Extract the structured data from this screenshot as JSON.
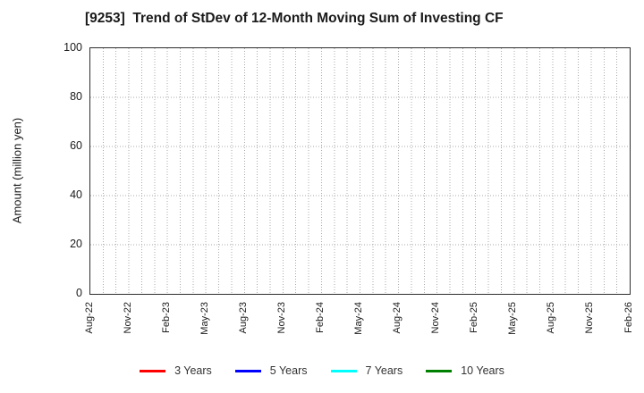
{
  "chart_data": {
    "type": "line",
    "title": "[9253]  Trend of StDev of 12-Month Moving Sum of Investing CF",
    "xlabel": "",
    "ylabel": "Amount (million yen)",
    "ylim": [
      0,
      100
    ],
    "yticks": [
      0,
      20,
      40,
      60,
      80,
      100
    ],
    "x_tick_labels": [
      "Aug-22",
      "Nov-22",
      "Feb-23",
      "May-23",
      "Aug-23",
      "Nov-23",
      "Feb-24",
      "May-24",
      "Aug-24",
      "Nov-24",
      "Feb-25",
      "May-25",
      "Aug-25",
      "Nov-25",
      "Feb-26"
    ],
    "x_total_month_divisions": 42,
    "grid": true,
    "grid_style": "dotted",
    "legend_position": "bottom-center",
    "no_data_plotted": true,
    "series": [
      {
        "name": "3 Years",
        "color": "#ff0000",
        "values": []
      },
      {
        "name": "5 Years",
        "color": "#0000ff",
        "values": []
      },
      {
        "name": "7 Years",
        "color": "#00ffff",
        "values": []
      },
      {
        "name": "10 Years",
        "color": "#008000",
        "values": []
      }
    ],
    "colors": {
      "grid": "#ababab",
      "axis_border": "#2e2e2e",
      "text": "#1a1a1a"
    }
  }
}
